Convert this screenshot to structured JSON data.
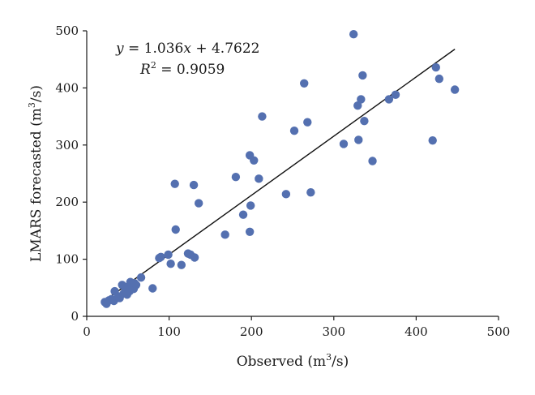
{
  "chart_data": {
    "type": "scatter",
    "xlabel": {
      "base": "Observed (m",
      "sup": "3",
      "tail": "/s)"
    },
    "ylabel": {
      "base": "LMARS forecasted (m",
      "sup": "3",
      "tail": "/s)"
    },
    "xlim": [
      0,
      500
    ],
    "ylim": [
      0,
      500
    ],
    "xticks": [
      0,
      100,
      200,
      300,
      400,
      500
    ],
    "yticks": [
      0,
      100,
      200,
      300,
      400,
      500
    ],
    "grid": false,
    "point_color": "#5470b0",
    "line_color": "#111111",
    "equation": {
      "y_var": "y",
      "eq_rhs_a": " = 1.036",
      "x_var": "x",
      "eq_rhs_b": " + 4.7622",
      "r_var": "R",
      "r_sup": "2",
      "r_rhs": " = 0.9059"
    },
    "regression": {
      "slope": 1.036,
      "intercept": 4.7622,
      "x_range": [
        20,
        447
      ]
    },
    "points": [
      {
        "x": 22,
        "y": 25
      },
      {
        "x": 24,
        "y": 22
      },
      {
        "x": 27,
        "y": 28
      },
      {
        "x": 30,
        "y": 30
      },
      {
        "x": 33,
        "y": 27
      },
      {
        "x": 34,
        "y": 44
      },
      {
        "x": 38,
        "y": 35
      },
      {
        "x": 40,
        "y": 32
      },
      {
        "x": 43,
        "y": 55
      },
      {
        "x": 45,
        "y": 40
      },
      {
        "x": 47,
        "y": 47
      },
      {
        "x": 49,
        "y": 38
      },
      {
        "x": 50,
        "y": 52
      },
      {
        "x": 52,
        "y": 44
      },
      {
        "x": 53,
        "y": 60
      },
      {
        "x": 55,
        "y": 50
      },
      {
        "x": 57,
        "y": 48
      },
      {
        "x": 60,
        "y": 55
      },
      {
        "x": 58,
        "y": 58
      },
      {
        "x": 66,
        "y": 68
      },
      {
        "x": 80,
        "y": 49
      },
      {
        "x": 88,
        "y": 102
      },
      {
        "x": 90,
        "y": 104
      },
      {
        "x": 99,
        "y": 108
      },
      {
        "x": 102,
        "y": 92
      },
      {
        "x": 107,
        "y": 232
      },
      {
        "x": 108,
        "y": 152
      },
      {
        "x": 115,
        "y": 90
      },
      {
        "x": 123,
        "y": 110
      },
      {
        "x": 126,
        "y": 108
      },
      {
        "x": 130,
        "y": 230
      },
      {
        "x": 131,
        "y": 103
      },
      {
        "x": 136,
        "y": 198
      },
      {
        "x": 168,
        "y": 143
      },
      {
        "x": 181,
        "y": 244
      },
      {
        "x": 190,
        "y": 178
      },
      {
        "x": 198,
        "y": 282
      },
      {
        "x": 198,
        "y": 148
      },
      {
        "x": 199,
        "y": 194
      },
      {
        "x": 203,
        "y": 273
      },
      {
        "x": 209,
        "y": 241
      },
      {
        "x": 213,
        "y": 350
      },
      {
        "x": 242,
        "y": 214
      },
      {
        "x": 252,
        "y": 325
      },
      {
        "x": 264,
        "y": 408
      },
      {
        "x": 268,
        "y": 340
      },
      {
        "x": 272,
        "y": 217
      },
      {
        "x": 312,
        "y": 302
      },
      {
        "x": 324,
        "y": 494
      },
      {
        "x": 329,
        "y": 369
      },
      {
        "x": 330,
        "y": 309
      },
      {
        "x": 333,
        "y": 380
      },
      {
        "x": 335,
        "y": 422
      },
      {
        "x": 337,
        "y": 342
      },
      {
        "x": 347,
        "y": 272
      },
      {
        "x": 367,
        "y": 380
      },
      {
        "x": 375,
        "y": 388
      },
      {
        "x": 420,
        "y": 308
      },
      {
        "x": 424,
        "y": 436
      },
      {
        "x": 428,
        "y": 416
      },
      {
        "x": 447,
        "y": 397
      }
    ]
  }
}
